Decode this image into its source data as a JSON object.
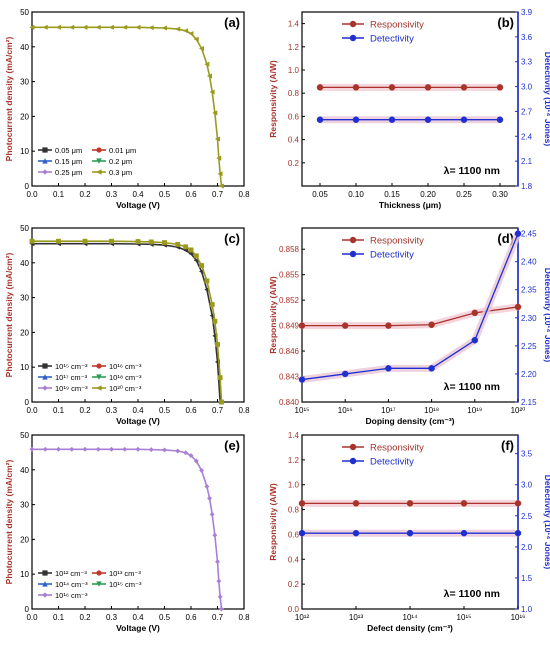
{
  "chart_data": [
    {
      "id": "a",
      "type": "line",
      "panel_label": "(a)",
      "xlabel": "Voltage (V)",
      "ylabel": "Photocurrent density (mA/cm²)",
      "xlim": [
        0,
        0.8
      ],
      "ylim": [
        0,
        50
      ],
      "xticks": [
        "0.0",
        "0.1",
        "0.2",
        "0.3",
        "0.4",
        "0.5",
        "0.6",
        "0.7",
        "0.8"
      ],
      "yticks": [
        "0",
        "10",
        "20",
        "30",
        "40",
        "50"
      ],
      "legend_position": "bottom-left",
      "legend": [
        {
          "label": "0.05 μm",
          "color": "#333333",
          "marker": "square"
        },
        {
          "label": "0.01 μm",
          "color": "#c0392b",
          "marker": "circle"
        },
        {
          "label": "0.15 μm",
          "color": "#2f62c9",
          "marker": "triangle"
        },
        {
          "label": "0.2 μm",
          "color": "#2e9f57",
          "marker": "triangle-down"
        },
        {
          "label": "0.25 μm",
          "color": "#a97fd6",
          "marker": "diamond"
        },
        {
          "label": "0.3 μm",
          "color": "#9a9a1e",
          "marker": "triangle-left"
        }
      ],
      "series": [
        {
          "color": "#9a9a1e",
          "x": [
            0,
            0.05,
            0.1,
            0.15,
            0.2,
            0.25,
            0.3,
            0.35,
            0.4,
            0.45,
            0.5,
            0.55,
            0.58,
            0.6,
            0.62,
            0.64,
            0.66,
            0.67,
            0.68,
            0.69,
            0.7,
            0.705,
            0.71,
            0.715
          ],
          "y": [
            45.6,
            45.6,
            45.6,
            45.6,
            45.6,
            45.6,
            45.6,
            45.6,
            45.6,
            45.5,
            45.4,
            45.1,
            44.6,
            43.8,
            42.2,
            39.5,
            35.0,
            31.6,
            27.0,
            21.0,
            13.5,
            8.0,
            3.5,
            0
          ]
        }
      ]
    },
    {
      "id": "b",
      "type": "line",
      "panel_label": "(b)",
      "xlabel": "Thickness (μm)",
      "ylabel": "Responsivity (A/W)",
      "y2label": "Detectivity (10¹⁴ Jones)",
      "xlim": [
        0.025,
        0.325
      ],
      "ylim": [
        0,
        1.5
      ],
      "y2lim": [
        1.8,
        3.9
      ],
      "xticks": [
        "0.05",
        "0.10",
        "0.15",
        "0.20",
        "0.25",
        "0.30"
      ],
      "yticks": [
        "0.2",
        "0.4",
        "0.6",
        "0.8",
        "1.0",
        "1.2",
        "1.4"
      ],
      "y2ticks": [
        "1.8",
        "2.1",
        "2.4",
        "2.7",
        "3.0",
        "3.3",
        "3.6",
        "3.9"
      ],
      "annotation": "λ= 1100 nm",
      "legend_position": "top",
      "series": [
        {
          "name": "Responsivity",
          "axis": "left",
          "color": "#a8332b",
          "x": [
            0.05,
            0.1,
            0.15,
            0.2,
            0.25,
            0.3
          ],
          "y": [
            0.85,
            0.85,
            0.85,
            0.85,
            0.85,
            0.85
          ]
        },
        {
          "name": "Detectivity",
          "axis": "right",
          "color": "#1f2fd0",
          "x": [
            0.05,
            0.1,
            0.15,
            0.2,
            0.25,
            0.3
          ],
          "y": [
            2.6,
            2.6,
            2.6,
            2.6,
            2.6,
            2.6
          ]
        }
      ]
    },
    {
      "id": "c",
      "type": "line",
      "panel_label": "(c)",
      "xlabel": "Voltage (V)",
      "ylabel": "Photocurrent density (mA/cm²)",
      "xlim": [
        0,
        0.8
      ],
      "ylim": [
        0,
        50
      ],
      "xticks": [
        "0.0",
        "0.1",
        "0.2",
        "0.3",
        "0.4",
        "0.5",
        "0.6",
        "0.7",
        "0.8"
      ],
      "yticks": [
        "0",
        "10",
        "20",
        "30",
        "40",
        "50"
      ],
      "legend_position": "bottom-left",
      "legend": [
        {
          "label": "10¹⁵ cm⁻³",
          "color": "#333333",
          "marker": "square"
        },
        {
          "label": "10¹⁶ cm⁻³",
          "color": "#c0392b",
          "marker": "circle"
        },
        {
          "label": "10¹⁷ cm⁻³",
          "color": "#2f62c9",
          "marker": "triangle"
        },
        {
          "label": "10¹⁸ cm⁻³",
          "color": "#2e9f57",
          "marker": "triangle-down"
        },
        {
          "label": "10¹⁹ cm⁻³",
          "color": "#a97fd6",
          "marker": "diamond"
        },
        {
          "label": "10²⁰ cm⁻³",
          "color": "#9a9a1e",
          "marker": "triangle-left"
        }
      ],
      "series": [
        {
          "color": "#333333",
          "x": [
            0,
            0.1,
            0.2,
            0.3,
            0.4,
            0.45,
            0.5,
            0.55,
            0.58,
            0.6,
            0.62,
            0.64,
            0.66,
            0.68,
            0.69,
            0.7,
            0.71
          ],
          "y": [
            45.5,
            45.5,
            45.5,
            45.5,
            45.4,
            45.3,
            45.1,
            44.5,
            43.6,
            42.6,
            40.7,
            37.5,
            32.3,
            24.8,
            19.0,
            11.5,
            0
          ]
        },
        {
          "color": "#9a9a1e",
          "x": [
            0,
            0.1,
            0.2,
            0.3,
            0.4,
            0.45,
            0.5,
            0.55,
            0.58,
            0.6,
            0.62,
            0.64,
            0.66,
            0.68,
            0.69,
            0.7,
            0.71,
            0.715
          ],
          "y": [
            46.2,
            46.2,
            46.2,
            46.2,
            46.1,
            46.0,
            45.8,
            45.3,
            44.6,
            43.7,
            42.0,
            39.2,
            34.8,
            28.0,
            23.2,
            16.5,
            7.0,
            0
          ]
        }
      ]
    },
    {
      "id": "d",
      "type": "line",
      "panel_label": "(d)",
      "xlabel": "Doping density (cm⁻³)",
      "ylabel": "Responsivity (A/W)",
      "y2label": "Detectivity (10¹⁴ Jones)",
      "xscale": "log",
      "xlim": [
        1000000000000000.0,
        1e+20
      ],
      "ylim": [
        0.84,
        0.8605
      ],
      "y2lim": [
        2.15,
        2.46
      ],
      "xticks": [
        "10¹⁵",
        "10¹⁶",
        "10¹⁷",
        "10¹⁸",
        "10¹⁹",
        "10²⁰"
      ],
      "yticks": [
        "0.840",
        "0.843",
        "0.846",
        "0.849",
        "0.852",
        "0.855",
        "0.858"
      ],
      "y2ticks": [
        "2.15",
        "2.20",
        "2.25",
        "2.30",
        "2.35",
        "2.40",
        "2.45"
      ],
      "annotation": "λ= 1100 nm",
      "legend_position": "top",
      "series": [
        {
          "name": "Responsivity",
          "axis": "left",
          "color": "#a8332b",
          "x": [
            1000000000000000.0,
            1e+16,
            1e+17,
            1e+18,
            1e+19,
            1e+20
          ],
          "y": [
            0.849,
            0.849,
            0.849,
            0.8491,
            0.8505,
            0.8512
          ]
        },
        {
          "name": "Detectivity",
          "axis": "right",
          "color": "#1f2fd0",
          "x": [
            1000000000000000.0,
            1e+16,
            1e+17,
            1e+18,
            1e+19,
            1e+20
          ],
          "y": [
            2.19,
            2.2,
            2.21,
            2.21,
            2.26,
            2.45
          ]
        }
      ]
    },
    {
      "id": "e",
      "type": "line",
      "panel_label": "(e)",
      "xlabel": "Voltage (V)",
      "ylabel": "Photocurrent density (mA/cm²)",
      "xlim": [
        0,
        0.8
      ],
      "ylim": [
        0,
        50
      ],
      "xticks": [
        "0.0",
        "0.1",
        "0.2",
        "0.3",
        "0.4",
        "0.5",
        "0.6",
        "0.7",
        "0.8"
      ],
      "yticks": [
        "0",
        "10",
        "20",
        "30",
        "40",
        "50"
      ],
      "legend_position": "bottom-left",
      "legend": [
        {
          "label": "10¹² cm⁻³",
          "color": "#333333",
          "marker": "square"
        },
        {
          "label": "10¹³ cm⁻³",
          "color": "#c0392b",
          "marker": "circle"
        },
        {
          "label": "10¹⁴ cm⁻³",
          "color": "#2f62c9",
          "marker": "triangle"
        },
        {
          "label": "10¹⁵ cm⁻³",
          "color": "#2e9f57",
          "marker": "triangle-down"
        },
        {
          "label": "10¹⁶ cm⁻³",
          "color": "#a97fd6",
          "marker": "diamond"
        }
      ],
      "series": [
        {
          "color": "#a97fd6",
          "x": [
            0,
            0.05,
            0.1,
            0.15,
            0.2,
            0.25,
            0.3,
            0.35,
            0.4,
            0.45,
            0.5,
            0.55,
            0.58,
            0.6,
            0.62,
            0.64,
            0.66,
            0.67,
            0.68,
            0.69,
            0.7,
            0.705,
            0.71,
            0.715
          ],
          "y": [
            45.9,
            45.9,
            45.9,
            45.9,
            45.9,
            45.9,
            45.9,
            45.9,
            45.9,
            45.8,
            45.7,
            45.4,
            44.9,
            44.1,
            42.5,
            39.8,
            35.2,
            31.8,
            27.2,
            21.2,
            13.6,
            8.0,
            3.5,
            0
          ]
        }
      ]
    },
    {
      "id": "f",
      "type": "line",
      "panel_label": "(f)",
      "xlabel": "Defect density (cm⁻³)",
      "ylabel": "Responsivity (A/W)",
      "y2label": "Detectivity (10¹⁴ Jones)",
      "xscale": "log",
      "xlim": [
        1000000000000.0,
        1e+16
      ],
      "ylim": [
        0,
        1.4
      ],
      "y2lim": [
        1.0,
        3.8
      ],
      "xticks": [
        "10¹²",
        "10¹³",
        "10¹⁴",
        "10¹⁵",
        "10¹⁶"
      ],
      "yticks": [
        "0.0",
        "0.2",
        "0.4",
        "0.6",
        "0.8",
        "1.0",
        "1.2",
        "1.4"
      ],
      "y2ticks": [
        "1.0",
        "1.5",
        "2.0",
        "2.5",
        "3.0",
        "3.5"
      ],
      "annotation": "λ= 1100 nm",
      "legend_position": "top",
      "series": [
        {
          "name": "Responsivity",
          "axis": "left",
          "color": "#a8332b",
          "x": [
            1000000000000.0,
            10000000000000.0,
            100000000000000.0,
            1000000000000000.0,
            1e+16
          ],
          "y": [
            0.85,
            0.85,
            0.85,
            0.85,
            0.85
          ]
        },
        {
          "name": "Detectivity",
          "axis": "right",
          "color": "#1f2fd0",
          "x": [
            1000000000000.0,
            10000000000000.0,
            100000000000000.0,
            1000000000000000.0,
            1e+16
          ],
          "y": [
            2.22,
            2.22,
            2.22,
            2.22,
            2.22
          ]
        }
      ]
    }
  ]
}
